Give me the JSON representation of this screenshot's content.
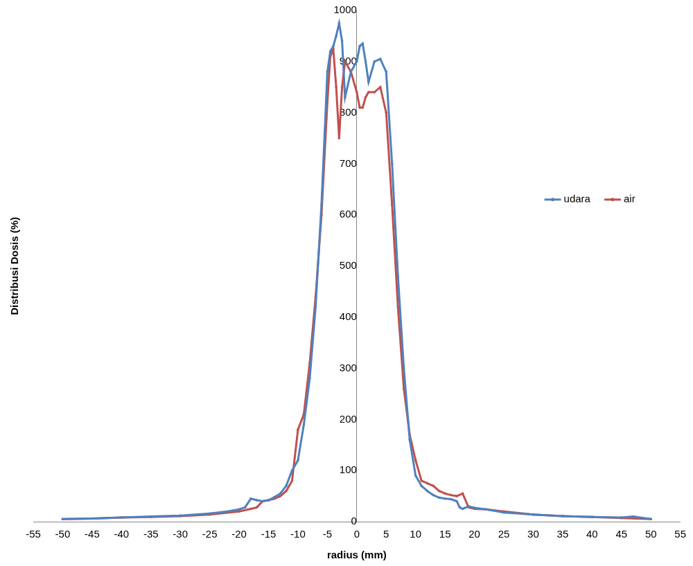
{
  "chart_data": {
    "type": "line",
    "x_label": "radius (mm)",
    "y_label": "Distribusi Dosis (%)",
    "xlim": [
      -55,
      55
    ],
    "xticks": [
      -55,
      -50,
      -45,
      -40,
      -35,
      -30,
      -25,
      -20,
      -15,
      -10,
      -5,
      0,
      5,
      10,
      15,
      20,
      25,
      30,
      35,
      40,
      45,
      50,
      55
    ],
    "ylim": [
      0,
      1000
    ],
    "yticks": [
      0,
      100,
      200,
      300,
      400,
      500,
      600,
      700,
      800,
      900,
      1000
    ],
    "grid": false,
    "legend": "right",
    "series": [
      {
        "name": "udara",
        "color": "#4f81bd",
        "marker": "circle",
        "line_style": "solid",
        "x": [
          -50,
          -45,
          -40,
          -35,
          -30,
          -25,
          -22,
          -20,
          -19,
          -18,
          -17,
          -16,
          -15,
          -14,
          -13,
          -12,
          -11,
          -10,
          -9,
          -8,
          -7,
          -6,
          -5,
          -4.5,
          -4,
          -3.5,
          -3,
          -2.5,
          -2,
          -1,
          0,
          0.5,
          1,
          1.5,
          2,
          3,
          4,
          5,
          6,
          7,
          8,
          9,
          10,
          11,
          12,
          13,
          14,
          15,
          16,
          17,
          17.5,
          18,
          19,
          20,
          22,
          25,
          30,
          35,
          40,
          45,
          47,
          50
        ],
        "values": [
          5,
          6,
          8,
          10,
          12,
          16,
          20,
          24,
          28,
          45,
          42,
          40,
          42,
          48,
          55,
          70,
          100,
          120,
          190,
          280,
          420,
          620,
          880,
          920,
          930,
          950,
          975,
          940,
          830,
          880,
          900,
          930,
          935,
          900,
          860,
          900,
          905,
          880,
          700,
          480,
          300,
          160,
          90,
          70,
          60,
          52,
          47,
          45,
          44,
          40,
          28,
          25,
          30,
          27,
          24,
          18,
          14,
          11,
          9,
          8,
          10,
          5
        ]
      },
      {
        "name": "air",
        "color": "#c0504d",
        "marker": "circle",
        "line_style": "solid",
        "x": [
          -50,
          -45,
          -40,
          -35,
          -30,
          -25,
          -20,
          -18,
          -17,
          -16,
          -15,
          -14,
          -13,
          -12,
          -11,
          -10,
          -9,
          -8,
          -7,
          -6,
          -5,
          -4.5,
          -4,
          -3.5,
          -3,
          -2.5,
          -2,
          -1,
          0,
          0.5,
          1,
          1.5,
          2,
          3,
          4,
          5,
          6,
          7,
          8,
          9,
          10,
          11,
          12,
          13,
          14,
          15,
          16,
          17,
          18,
          19,
          20,
          22,
          25,
          30,
          35,
          40,
          45,
          50
        ],
        "values": [
          5,
          6,
          8,
          9,
          11,
          14,
          20,
          25,
          28,
          40,
          42,
          45,
          50,
          60,
          80,
          180,
          210,
          310,
          440,
          600,
          820,
          910,
          925,
          850,
          750,
          850,
          900,
          880,
          840,
          810,
          810,
          830,
          840,
          840,
          850,
          800,
          620,
          420,
          260,
          170,
          120,
          80,
          75,
          70,
          60,
          55,
          52,
          50,
          55,
          28,
          25,
          24,
          20,
          14,
          11,
          9,
          7,
          5
        ]
      }
    ]
  }
}
